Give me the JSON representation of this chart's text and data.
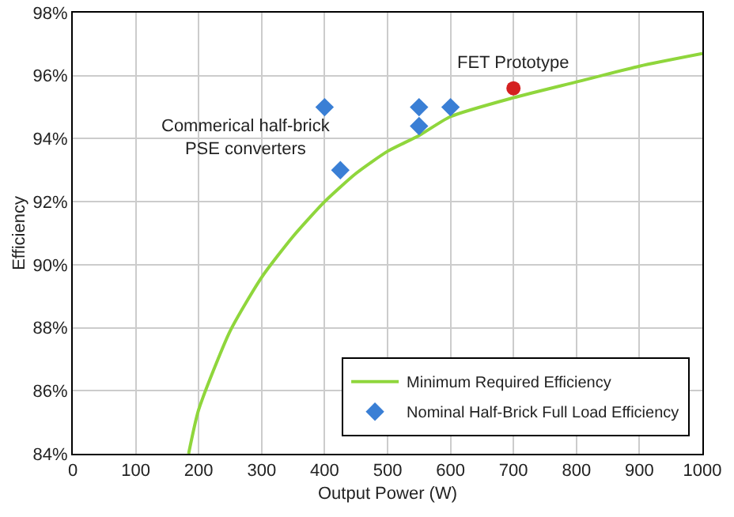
{
  "chart_data": {
    "type": "line",
    "xlabel": "Output Power (W)",
    "ylabel": "Efficiency",
    "xlim": [
      0,
      1000
    ],
    "xticks": [
      0,
      100,
      200,
      300,
      400,
      500,
      600,
      700,
      800,
      900,
      1000
    ],
    "ylim": [
      84,
      98
    ],
    "yticks": [
      {
        "value": 84,
        "label": "84%"
      },
      {
        "value": 86,
        "label": "86%"
      },
      {
        "value": 88,
        "label": "88%"
      },
      {
        "value": 90,
        "label": "90%"
      },
      {
        "value": 92,
        "label": "92%"
      },
      {
        "value": 94,
        "label": "94%"
      },
      {
        "value": 96,
        "label": "96%"
      },
      {
        "value": 98,
        "label": "98%"
      }
    ],
    "grid": true,
    "legend": "bottom right",
    "series": [
      {
        "name": "Minimum Required Efficiency",
        "marker": "none",
        "color": "#8fd63c",
        "x": [
          184,
          200,
          250,
          300,
          350,
          400,
          450,
          500,
          550,
          600,
          700,
          800,
          900,
          1000
        ],
        "values": [
          84,
          85.4,
          87.9,
          89.6,
          90.9,
          92.0,
          92.9,
          93.6,
          94.1,
          94.7,
          95.3,
          95.8,
          96.3,
          96.7
        ]
      },
      {
        "name": "Nominal Half-Brick Full Load Efficiency",
        "type": "scatter",
        "marker": "diamond",
        "color": "#3a7fd5",
        "x": [
          400,
          425,
          550,
          550,
          600
        ],
        "values": [
          95,
          93,
          95,
          94.4,
          95
        ]
      },
      {
        "type": "scatter",
        "marker": "circle",
        "color": "#d42020",
        "x": [
          700
        ],
        "values": [
          95.6
        ]
      }
    ],
    "annotations": [
      {
        "text": "FET Prototype",
        "x": 700,
        "y": 95.6
      },
      {
        "text": "Commerical half-brick\nPSE converters",
        "x": 425,
        "y": 93
      }
    ]
  }
}
